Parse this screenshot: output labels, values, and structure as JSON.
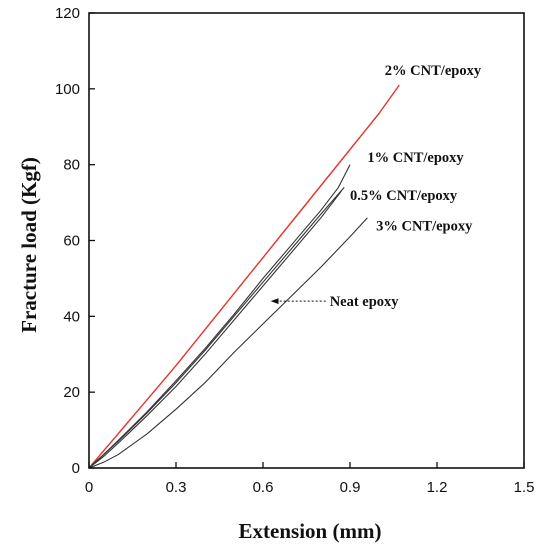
{
  "chart_data": {
    "type": "line",
    "xlabel": "Extension (mm)",
    "ylabel": "Fracture load (Kgf)",
    "xlim": [
      0,
      1.5
    ],
    "ylim": [
      0,
      120
    ],
    "x_ticks": [
      "0",
      "0.3",
      "0.6",
      "0.9",
      "1.2",
      "1.5"
    ],
    "y_ticks": [
      "0",
      "20",
      "40",
      "60",
      "80",
      "100",
      "120"
    ],
    "grid": false,
    "series": [
      {
        "name": "2% CNT/epoxy",
        "color": "#e8322e",
        "x": [
          0,
          0.05,
          0.1,
          0.2,
          0.3,
          0.4,
          0.5,
          0.6,
          0.7,
          0.8,
          0.9,
          1.0,
          1.07
        ],
        "y": [
          0,
          4.5,
          9,
          18,
          27,
          36.5,
          46,
          55.5,
          65,
          74.5,
          84,
          93.5,
          101
        ]
      },
      {
        "name": "1% CNT/epoxy",
        "color": "#333333",
        "x": [
          0,
          0.05,
          0.1,
          0.2,
          0.3,
          0.4,
          0.5,
          0.6,
          0.7,
          0.8,
          0.86,
          0.9
        ],
        "y": [
          0,
          3.5,
          7.2,
          14.8,
          23,
          31.5,
          40.5,
          50,
          59,
          68,
          74,
          80
        ]
      },
      {
        "name": "0.5% CNT/epoxy",
        "color": "#333333",
        "x": [
          0,
          0.05,
          0.1,
          0.2,
          0.3,
          0.4,
          0.5,
          0.6,
          0.7,
          0.8,
          0.88
        ],
        "y": [
          0,
          3.5,
          7,
          14.5,
          22.5,
          31,
          40,
          49,
          58,
          67,
          74
        ]
      },
      {
        "name": "Neat epoxy",
        "color": "#333333",
        "x": [
          0,
          0.05,
          0.1,
          0.2,
          0.3,
          0.4,
          0.5,
          0.6,
          0.7,
          0.8,
          0.87
        ],
        "y": [
          0,
          3,
          6.5,
          13.8,
          21.5,
          30,
          39,
          48,
          57,
          66,
          73
        ]
      },
      {
        "name": "3% CNT/epoxy",
        "color": "#333333",
        "x": [
          0,
          0.05,
          0.1,
          0.2,
          0.3,
          0.4,
          0.5,
          0.6,
          0.7,
          0.8,
          0.9,
          0.96
        ],
        "y": [
          0,
          1.5,
          3.5,
          9,
          15.5,
          22.5,
          30.5,
          38,
          45.5,
          53,
          61,
          66
        ]
      }
    ],
    "annotations": [
      {
        "text": "2% CNT/epoxy",
        "x": 1.02,
        "y": 105
      },
      {
        "text": "1% CNT/epoxy",
        "x": 0.96,
        "y": 82
      },
      {
        "text": "0.5% CNT/epoxy",
        "x": 0.9,
        "y": 72
      },
      {
        "text": "3% CNT/epoxy",
        "x": 0.99,
        "y": 64
      },
      {
        "text": "Neat epoxy",
        "x": 0.83,
        "y": 44,
        "arrow_to_x": 0.63,
        "arrow_to_y": 44
      }
    ]
  }
}
